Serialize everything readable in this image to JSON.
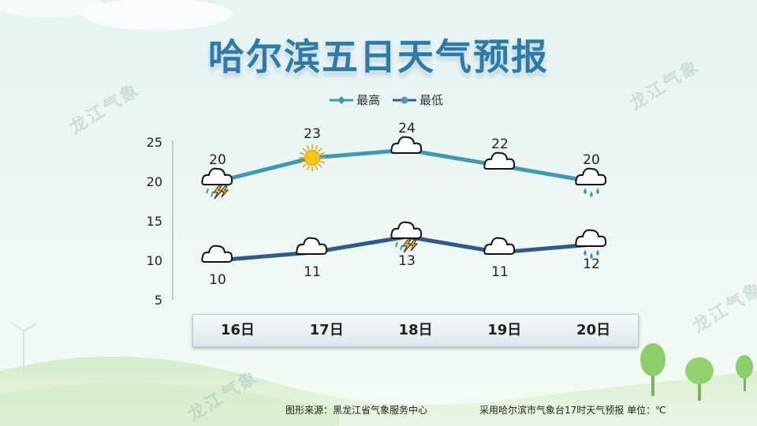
{
  "page": {
    "title": "哈尔滨五日天气预报",
    "source": "图形来源：黑龙江省气象服务中心",
    "note": "采用哈尔滨市气象台17时天气预报 单位：℃",
    "watermark": "龙江气象"
  },
  "chart_data": {
    "type": "line",
    "categories": [
      "16日",
      "17日",
      "18日",
      "19日",
      "20日"
    ],
    "ylim": [
      5,
      25
    ],
    "yticks": [
      25,
      20,
      15,
      10,
      5
    ],
    "legend_position": "top-center",
    "series": [
      {
        "name": "最高",
        "values": [
          20,
          23,
          24,
          22,
          20
        ],
        "color": "#3e9ab0",
        "marker": "diamond",
        "weather_icons": [
          "cloud-thunder-rain-icon",
          "sun-icon",
          "cloud-icon",
          "cloud-icon",
          "cloud-rain-icon"
        ]
      },
      {
        "name": "最低",
        "values": [
          10,
          11,
          13,
          11,
          12
        ],
        "color": "#2f5a8c",
        "marker": "circle",
        "weather_icons": [
          "cloud-icon",
          "cloud-icon",
          "cloud-thunder-rain-icon",
          "cloud-icon",
          "cloud-rain-icon"
        ]
      }
    ],
    "grid": false
  }
}
